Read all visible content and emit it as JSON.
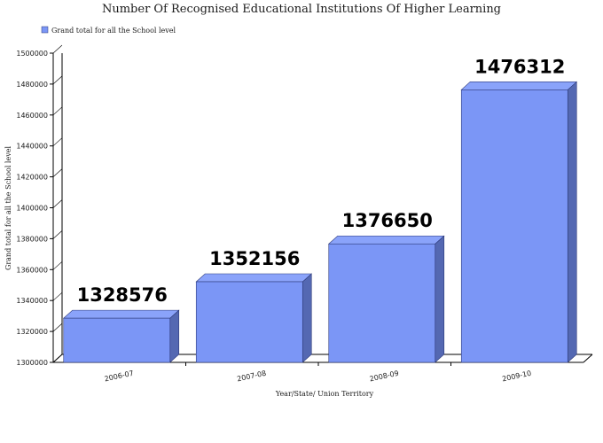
{
  "chart_data": {
    "type": "bar",
    "title": "Number Of Recognised Educational Institutions Of Higher Learning",
    "xlabel": "Year/State/  Union Territory",
    "ylabel": "Grand total for all the School level",
    "categories": [
      "2006-07",
      "2007-08",
      "2008-09",
      "2009-10"
    ],
    "series": [
      {
        "name": "Grand total for all the School level",
        "values": [
          1328576,
          1352156,
          1376650,
          1476312
        ]
      }
    ],
    "data_labels": [
      "1328576",
      "1352156",
      "1376650",
      "1476312"
    ],
    "ylim": [
      1300000,
      1500000
    ],
    "yticks": [
      1300000,
      1320000,
      1340000,
      1360000,
      1380000,
      1400000,
      1420000,
      1440000,
      1460000,
      1480000,
      1500000
    ],
    "grid": false,
    "legend_position": "top-left",
    "colors": {
      "bar_front": "#7b96f6",
      "bar_top": "#8aa3fa",
      "bar_side": "#5468b2",
      "bar_edge": "#2e3a7a",
      "axis": "#000000"
    }
  }
}
